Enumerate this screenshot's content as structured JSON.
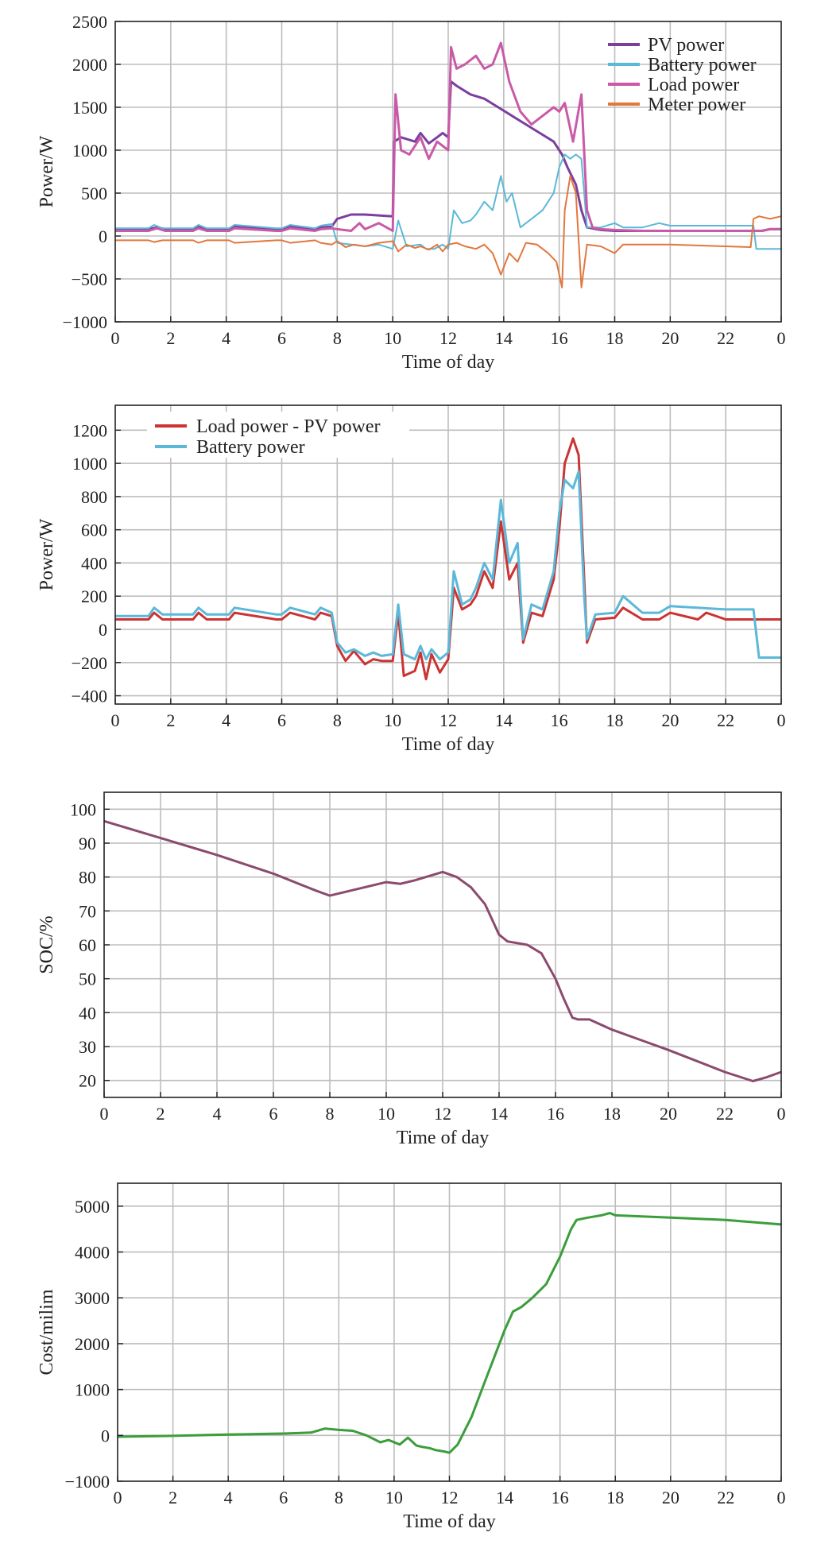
{
  "chart_data": [
    {
      "type": "line",
      "xlabel": "Time of day",
      "ylabel": "Power/W",
      "xlim": [
        0,
        24
      ],
      "ylim": [
        -1000,
        2500
      ],
      "xticks": [
        "0",
        "2",
        "4",
        "6",
        "8",
        "10",
        "12",
        "14",
        "16",
        "18",
        "20",
        "22",
        "0"
      ],
      "yticks": [
        2500,
        2000,
        1500,
        1000,
        500,
        0,
        -500,
        -1000
      ],
      "ytick_labels": [
        "2500",
        "2000",
        "1500",
        "1000",
        "500",
        "0",
        "−500",
        "−1000"
      ],
      "grid": true,
      "legend_position": "top-right",
      "series": [
        {
          "name": "PV power",
          "color": "#7b3f9e",
          "width": 3,
          "x": [
            0,
            1.2,
            1.5,
            1.8,
            2.8,
            3,
            3.3,
            4.1,
            4.3,
            5.8,
            6,
            6.3,
            7.2,
            7.4,
            7.8,
            8,
            8.5,
            9,
            9.5,
            10,
            10.05,
            10.3,
            10.8,
            11,
            11.3,
            11.6,
            11.8,
            12,
            12.1,
            12.3,
            12.8,
            13.3,
            13.8,
            14.3,
            14.8,
            15.3,
            15.8,
            16.1,
            16.3,
            16.6,
            16.8,
            17,
            17.5,
            18,
            19,
            20,
            22,
            23,
            23.3,
            23.6,
            24
          ],
          "y": [
            80,
            80,
            100,
            80,
            80,
            110,
            80,
            80,
            110,
            80,
            80,
            110,
            80,
            100,
            110,
            200,
            250,
            250,
            240,
            230,
            1100,
            1150,
            1100,
            1200,
            1080,
            1150,
            1200,
            1150,
            1800,
            1750,
            1650,
            1600,
            1500,
            1400,
            1300,
            1200,
            1100,
            950,
            800,
            600,
            300,
            100,
            70,
            60,
            60,
            60,
            60,
            60,
            60,
            80,
            80
          ]
        },
        {
          "name": "Battery power",
          "color": "#5bb8d8",
          "width": 2,
          "x": [
            0,
            1.2,
            1.4,
            1.7,
            2.8,
            3,
            3.3,
            4.1,
            4.3,
            5.8,
            6,
            6.3,
            7.2,
            7.4,
            7.8,
            8,
            8.5,
            9,
            9.5,
            10,
            10.2,
            10.5,
            11,
            11.2,
            11.5,
            11.8,
            12,
            12.2,
            12.5,
            12.8,
            13,
            13.3,
            13.6,
            13.9,
            14.1,
            14.3,
            14.6,
            15,
            15.4,
            15.8,
            16,
            16.2,
            16.4,
            16.6,
            16.8,
            17,
            17.5,
            18,
            18.3,
            19,
            19.6,
            20,
            22,
            23,
            23.1,
            24
          ],
          "y": [
            90,
            90,
            130,
            90,
            90,
            130,
            90,
            90,
            130,
            90,
            90,
            130,
            90,
            120,
            140,
            -80,
            -100,
            -120,
            -100,
            -150,
            180,
            -120,
            -100,
            -150,
            -150,
            -100,
            -150,
            300,
            150,
            180,
            250,
            400,
            300,
            700,
            400,
            500,
            100,
            200,
            300,
            500,
            800,
            950,
            900,
            950,
            900,
            100,
            100,
            150,
            100,
            100,
            150,
            120,
            120,
            120,
            -150,
            -150
          ]
        },
        {
          "name": "Load power",
          "color": "#c95aa8",
          "width": 3,
          "x": [
            0,
            1.2,
            1.5,
            1.8,
            2.8,
            3,
            3.3,
            4.1,
            4.3,
            5.8,
            6,
            6.3,
            7.2,
            7.4,
            7.8,
            8,
            8.5,
            8.8,
            9,
            9.5,
            10,
            10.1,
            10.3,
            10.6,
            11,
            11.3,
            11.6,
            12,
            12.1,
            12.3,
            12.6,
            13,
            13.3,
            13.6,
            13.9,
            14.2,
            14.6,
            15,
            15.4,
            15.8,
            16,
            16.2,
            16.5,
            16.8,
            17,
            17.2,
            17.5,
            18,
            19,
            20,
            22,
            23,
            23.3,
            23.6,
            24
          ],
          "y": [
            60,
            60,
            90,
            60,
            60,
            90,
            60,
            60,
            90,
            60,
            60,
            90,
            60,
            80,
            90,
            80,
            60,
            150,
            80,
            150,
            60,
            1650,
            1000,
            950,
            1150,
            900,
            1100,
            1000,
            2200,
            1950,
            2000,
            2100,
            1950,
            2000,
            2250,
            1800,
            1450,
            1300,
            1400,
            1500,
            1450,
            1550,
            1100,
            1650,
            300,
            100,
            80,
            70,
            60,
            60,
            60,
            60,
            60,
            80,
            80
          ]
        },
        {
          "name": "Meter power",
          "color": "#e2773d",
          "width": 2,
          "x": [
            0,
            1.2,
            1.4,
            1.7,
            2.8,
            3,
            3.3,
            4.1,
            4.3,
            5.8,
            6,
            6.3,
            7.2,
            7.4,
            7.8,
            8,
            8.3,
            8.6,
            9,
            9.5,
            10,
            10.2,
            10.5,
            10.8,
            11,
            11.3,
            11.6,
            11.8,
            12,
            12.3,
            12.6,
            13,
            13.3,
            13.6,
            13.9,
            14.2,
            14.5,
            14.8,
            15.2,
            15.6,
            15.9,
            16.1,
            16.2,
            16.4,
            16.6,
            16.8,
            17,
            17.5,
            18,
            18.3,
            19,
            20,
            22,
            22.9,
            23,
            23.2,
            23.6,
            24
          ],
          "y": [
            -50,
            -50,
            -70,
            -50,
            -50,
            -80,
            -50,
            -50,
            -80,
            -50,
            -50,
            -80,
            -50,
            -80,
            -100,
            -60,
            -130,
            -100,
            -120,
            -80,
            -60,
            -180,
            -100,
            -140,
            -120,
            -160,
            -100,
            -180,
            -100,
            -80,
            -120,
            -150,
            -100,
            -200,
            -450,
            -200,
            -300,
            -80,
            -100,
            -200,
            -300,
            -600,
            300,
            700,
            500,
            -600,
            -100,
            -120,
            -200,
            -100,
            -100,
            -100,
            -120,
            -130,
            200,
            230,
            200,
            230
          ]
        }
      ]
    },
    {
      "type": "line",
      "xlabel": "Time of day",
      "ylabel": "Power/W",
      "xlim": [
        0,
        24
      ],
      "ylim": [
        -450,
        1350
      ],
      "xticks": [
        "0",
        "2",
        "4",
        "6",
        "8",
        "10",
        "12",
        "14",
        "16",
        "18",
        "20",
        "22",
        "0"
      ],
      "yticks": [
        1200,
        1000,
        800,
        600,
        400,
        200,
        0,
        -200,
        -400
      ],
      "ytick_labels": [
        "1200",
        "1000",
        "800",
        "600",
        "400",
        "200",
        "0",
        "−200",
        "−400"
      ],
      "grid": true,
      "legend_position": "top-left",
      "series": [
        {
          "name": "Load power - PV power",
          "color": "#cc3333",
          "width": 3,
          "x": [
            0,
            1.2,
            1.4,
            1.7,
            2.8,
            3,
            3.3,
            4.1,
            4.3,
            5.8,
            6,
            6.3,
            7.2,
            7.4,
            7.8,
            8,
            8.3,
            8.6,
            9,
            9.3,
            9.6,
            10,
            10.2,
            10.4,
            10.8,
            11,
            11.2,
            11.4,
            11.7,
            12,
            12.2,
            12.5,
            12.8,
            13,
            13.3,
            13.6,
            13.9,
            14.2,
            14.5,
            14.7,
            15,
            15.4,
            15.8,
            16,
            16.2,
            16.5,
            16.7,
            16.9,
            17,
            17.3,
            18,
            18.3,
            19,
            19.6,
            20,
            21,
            21.3,
            22,
            23,
            23.1,
            24
          ],
          "y": [
            60,
            60,
            100,
            60,
            60,
            100,
            60,
            60,
            100,
            60,
            60,
            100,
            60,
            100,
            80,
            -100,
            -190,
            -130,
            -210,
            -180,
            -190,
            -190,
            100,
            -280,
            -250,
            -140,
            -300,
            -150,
            -260,
            -180,
            250,
            120,
            150,
            200,
            350,
            250,
            650,
            300,
            400,
            -80,
            100,
            80,
            300,
            600,
            1000,
            1150,
            1050,
            300,
            -80,
            60,
            70,
            130,
            60,
            60,
            100,
            60,
            100,
            60,
            60,
            60,
            60
          ]
        },
        {
          "name": "Battery power",
          "color": "#5bb8d8",
          "width": 3,
          "x": [
            0,
            1.2,
            1.4,
            1.7,
            2.8,
            3,
            3.3,
            4.1,
            4.3,
            5.8,
            6,
            6.3,
            7.2,
            7.4,
            7.8,
            8,
            8.3,
            8.6,
            9,
            9.3,
            9.6,
            10,
            10.2,
            10.4,
            10.8,
            11,
            11.2,
            11.4,
            11.7,
            12,
            12.2,
            12.5,
            12.8,
            13,
            13.3,
            13.6,
            13.9,
            14.2,
            14.5,
            14.7,
            15,
            15.4,
            15.8,
            16,
            16.2,
            16.5,
            16.7,
            16.9,
            17,
            17.3,
            18,
            18.3,
            19,
            19.6,
            20,
            22,
            23,
            23.2,
            24
          ],
          "y": [
            80,
            80,
            130,
            90,
            90,
            130,
            90,
            90,
            130,
            90,
            90,
            130,
            90,
            130,
            100,
            -80,
            -140,
            -120,
            -160,
            -140,
            -160,
            -150,
            150,
            -150,
            -180,
            -100,
            -180,
            -120,
            -180,
            -140,
            350,
            150,
            180,
            250,
            400,
            300,
            780,
            400,
            520,
            -60,
            150,
            120,
            350,
            700,
            900,
            850,
            950,
            200,
            -60,
            90,
            100,
            200,
            100,
            100,
            140,
            120,
            120,
            -170,
            -170
          ]
        }
      ]
    },
    {
      "type": "line",
      "xlabel": "Time of day",
      "ylabel": "SOC/%",
      "xlim": [
        0,
        24
      ],
      "ylim": [
        15,
        105
      ],
      "xticks": [
        "0",
        "2",
        "4",
        "6",
        "8",
        "10",
        "12",
        "14",
        "16",
        "18",
        "20",
        "22",
        "0"
      ],
      "yticks": [
        100,
        90,
        80,
        70,
        60,
        50,
        40,
        30,
        20
      ],
      "ytick_labels": [
        "100",
        "90",
        "80",
        "70",
        "60",
        "50",
        "40",
        "30",
        "20"
      ],
      "grid": true,
      "series": [
        {
          "color": "#8b4a6e",
          "width": 3,
          "x": [
            0,
            2,
            4,
            6,
            7.5,
            8,
            9,
            10,
            10.5,
            11,
            12,
            12.5,
            13,
            13.5,
            14,
            14.3,
            15,
            15.5,
            16,
            16.3,
            16.6,
            16.8,
            17.2,
            18,
            19,
            20,
            22,
            23,
            23.5,
            24
          ],
          "y": [
            96.5,
            91.5,
            86.5,
            81,
            76,
            74.5,
            76.5,
            78.5,
            78,
            79,
            81.5,
            80,
            77,
            72,
            63,
            61,
            60,
            57.5,
            50,
            44,
            38.5,
            38,
            38,
            35,
            32,
            29,
            22.5,
            19.8,
            21,
            22.5
          ]
        }
      ]
    },
    {
      "type": "line",
      "xlabel": "Time of day",
      "ylabel": "Cost/milim",
      "xlim": [
        0,
        24
      ],
      "ylim": [
        -1000,
        5500
      ],
      "xticks": [
        "0",
        "2",
        "4",
        "6",
        "8",
        "10",
        "12",
        "14",
        "16",
        "18",
        "20",
        "22",
        "0"
      ],
      "yticks": [
        5000,
        4000,
        3000,
        2000,
        1000,
        0,
        -1000
      ],
      "ytick_labels": [
        "5000",
        "4000",
        "3000",
        "2000",
        "1000",
        "0",
        "−1000"
      ],
      "grid": true,
      "series": [
        {
          "color": "#3a9e3a",
          "width": 3,
          "x": [
            0,
            2,
            4,
            6,
            7,
            7.5,
            8,
            8.5,
            9,
            9.5,
            9.8,
            10.2,
            10.5,
            10.8,
            11,
            11.3,
            11.5,
            11.8,
            12,
            12.3,
            12.8,
            13.3,
            14,
            14.3,
            14.6,
            15,
            15.5,
            16,
            16.4,
            16.6,
            17,
            17.5,
            17.8,
            18,
            20,
            22,
            24
          ],
          "y": [
            -30,
            -10,
            20,
            40,
            60,
            150,
            120,
            100,
            0,
            -150,
            -100,
            -200,
            -50,
            -220,
            -250,
            -280,
            -320,
            -350,
            -380,
            -200,
            400,
            1200,
            2300,
            2700,
            2800,
            3000,
            3300,
            3900,
            4500,
            4700,
            4750,
            4800,
            4850,
            4800,
            4750,
            4700,
            4600
          ]
        }
      ]
    }
  ]
}
